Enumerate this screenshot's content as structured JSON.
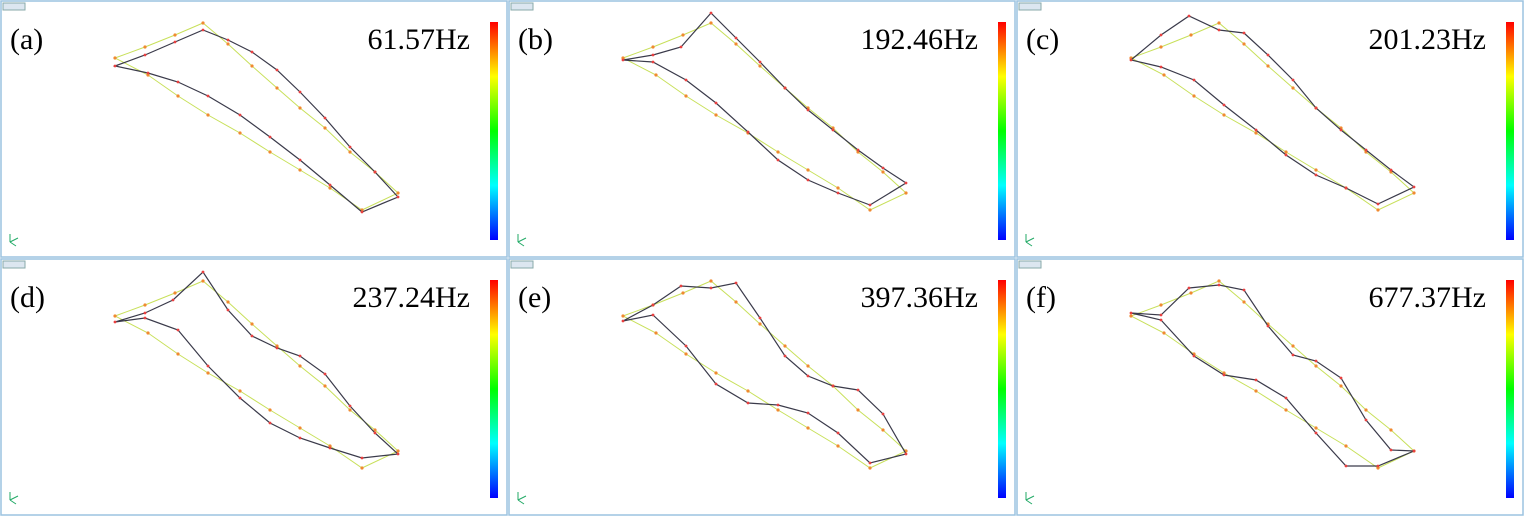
{
  "panels": [
    {
      "label": "(a)",
      "frequency": "61.57Hz"
    },
    {
      "label": "(b)",
      "frequency": "192.46Hz"
    },
    {
      "label": "(c)",
      "frequency": "201.23Hz"
    },
    {
      "label": "(d)",
      "frequency": "237.24Hz"
    },
    {
      "label": "(e)",
      "frequency": "397.36Hz"
    },
    {
      "label": "(f)",
      "frequency": "677.37Hz"
    }
  ]
}
